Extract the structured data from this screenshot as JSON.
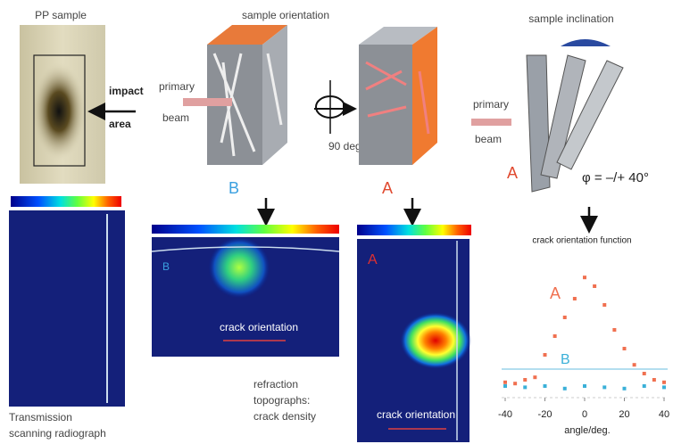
{
  "panels": {
    "pp_sample": {
      "title": "PP sample",
      "impact": [
        "impact",
        "area"
      ],
      "caption": [
        "Transmission",
        "scanning radiograph"
      ]
    },
    "orientation": {
      "title": "sample orientation",
      "beam": [
        "primary",
        "beam"
      ],
      "rotation": "90 deg.",
      "label_b": "B",
      "label_a": "A"
    },
    "inclination": {
      "title": "sample inclination",
      "beam": [
        "primary",
        "beam"
      ],
      "label_a": "A",
      "angle": "φ = –/+ 40°"
    },
    "topographs": {
      "label_b": "B",
      "label_a": "A",
      "crack_b": "crack orientation",
      "crack_a": "crack orientation",
      "caption": [
        "refraction",
        "topographs:",
        "crack density"
      ]
    },
    "plot": {
      "type": "scatter",
      "title": "crack orientation function",
      "x_label": "angle/deg.",
      "xlim": [
        -40,
        40
      ],
      "xticks": [
        -40,
        -20,
        0,
        20,
        40
      ],
      "ylim": [
        0,
        1
      ],
      "series": [
        {
          "name": "A",
          "color": "#f07050",
          "x": [
            -40,
            -35,
            -30,
            -25,
            -20,
            -15,
            -10,
            -5,
            0,
            5,
            10,
            15,
            20,
            25,
            30,
            35,
            40
          ],
          "values": [
            0.08,
            0.07,
            0.1,
            0.12,
            0.3,
            0.45,
            0.6,
            0.75,
            0.92,
            0.85,
            0.7,
            0.5,
            0.35,
            0.22,
            0.15,
            0.1,
            0.08
          ]
        },
        {
          "name": "B",
          "color": "#3ab0d8",
          "x": [
            -40,
            -30,
            -20,
            -10,
            0,
            10,
            20,
            30,
            40
          ],
          "values": [
            0.05,
            0.04,
            0.05,
            0.03,
            0.05,
            0.04,
            0.03,
            0.05,
            0.04
          ]
        }
      ]
    }
  }
}
